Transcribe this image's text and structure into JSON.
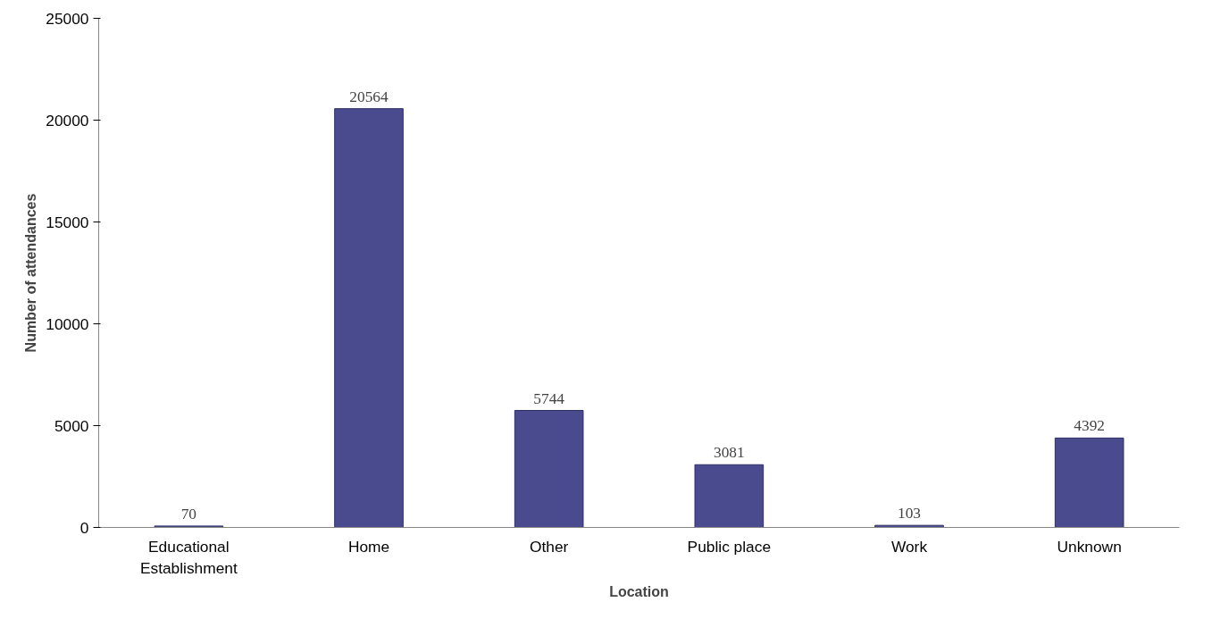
{
  "chart_data": {
    "type": "bar",
    "xlabel": "Location",
    "ylabel": "Number of attendances",
    "categories": [
      "Educational Establishment",
      "Home",
      "Other",
      "Public place",
      "Work",
      "Unknown"
    ],
    "values": [
      70,
      20564,
      5744,
      3081,
      103,
      4392
    ],
    "color": "#4a4a8f",
    "ylim": [
      0,
      25000
    ],
    "yticks": [
      0,
      5000,
      10000,
      15000,
      20000,
      25000
    ],
    "grid": false,
    "data_labels": true
  }
}
